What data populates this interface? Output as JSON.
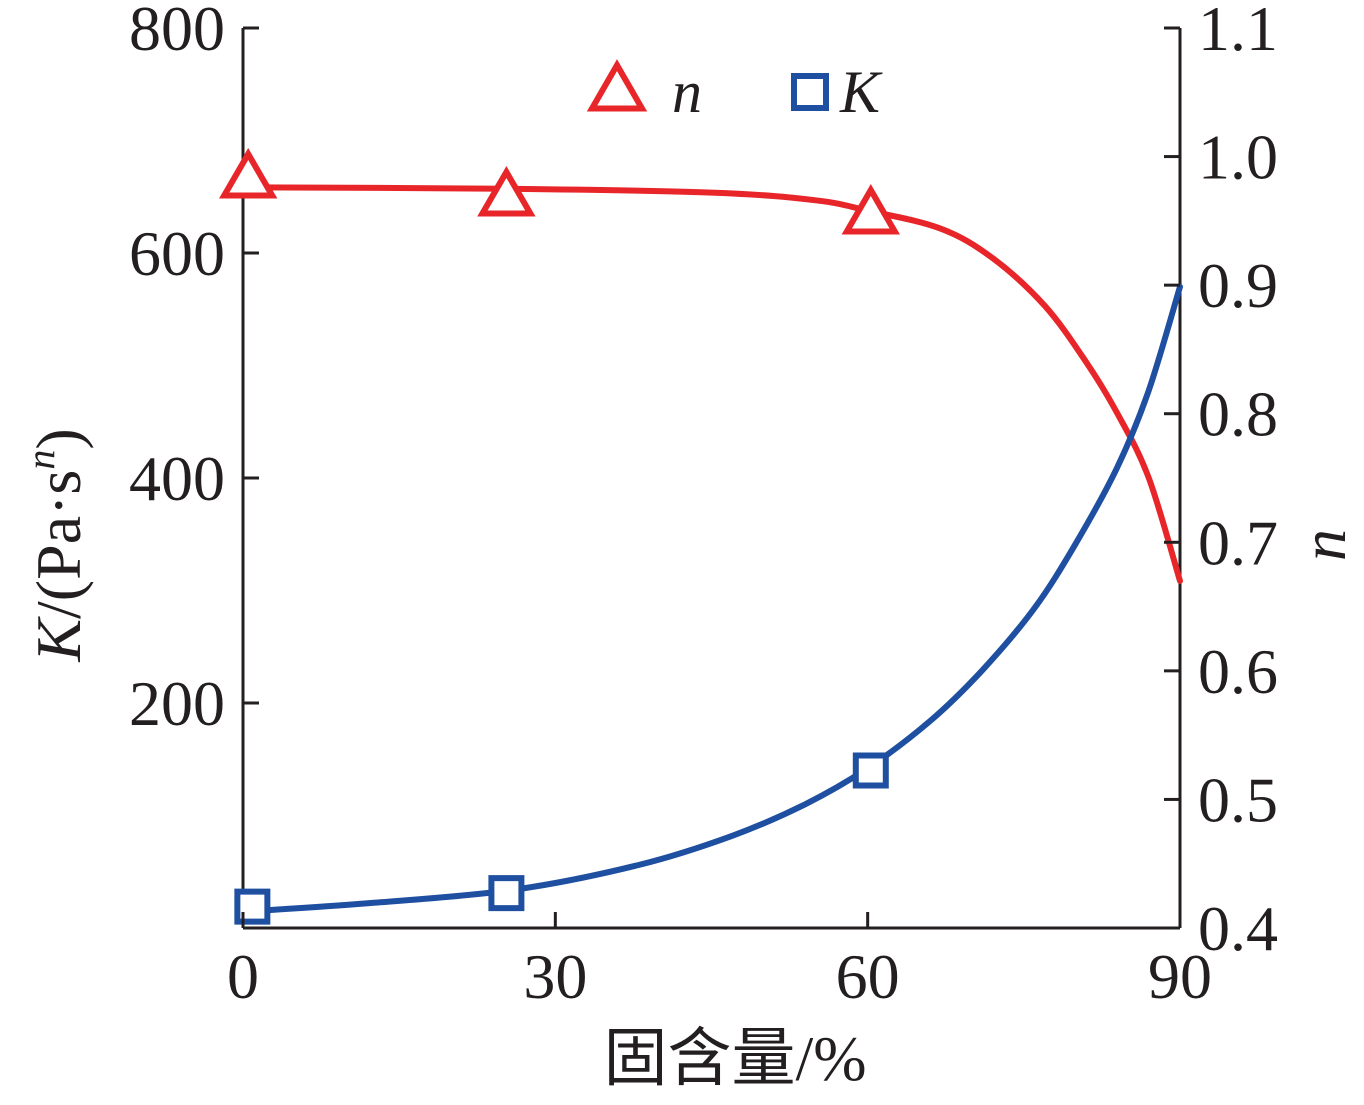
{
  "chart_data": {
    "type": "line",
    "x_axis": {
      "label": "固含量/%",
      "ticks": [
        0,
        30,
        60,
        90
      ],
      "range": [
        0,
        90
      ]
    },
    "y_left_axis": {
      "label_prefix": "K",
      "label_unit": "/(Pa·s",
      "label_sup": "n",
      "label_suffix": ")",
      "ticks": [
        200,
        400,
        600,
        800
      ],
      "range": [
        0,
        800
      ]
    },
    "y_right_axis": {
      "label": "n",
      "ticks": [
        "0.4",
        "0.5",
        "0.6",
        "0.7",
        "0.8",
        "0.9",
        "1.0",
        "1.1"
      ],
      "range": [
        0.4,
        1.1
      ]
    },
    "legend": {
      "placement": "top-center",
      "entries": [
        {
          "label": "n",
          "marker": "triangle",
          "color": "#e8262a"
        },
        {
          "label": "K",
          "marker": "square",
          "color": "#1f4fa0"
        }
      ]
    },
    "series": [
      {
        "name": "n",
        "axis": "right",
        "color": "#e8262a",
        "marker": "triangle",
        "points": [
          {
            "x": 0.5,
            "y": 0.982
          },
          {
            "x": 25.3,
            "y": 0.968
          },
          {
            "x": 60.3,
            "y": 0.954
          }
        ],
        "fit_curve": [
          {
            "x": 0.5,
            "y": 0.976
          },
          {
            "x": 25,
            "y": 0.975
          },
          {
            "x": 45,
            "y": 0.972
          },
          {
            "x": 55,
            "y": 0.966
          },
          {
            "x": 60,
            "y": 0.958
          },
          {
            "x": 67,
            "y": 0.944
          },
          {
            "x": 72,
            "y": 0.921
          },
          {
            "x": 77,
            "y": 0.884
          },
          {
            "x": 81,
            "y": 0.84
          },
          {
            "x": 84,
            "y": 0.8
          },
          {
            "x": 87,
            "y": 0.75
          },
          {
            "x": 90,
            "y": 0.67
          }
        ]
      },
      {
        "name": "K",
        "axis": "left",
        "color": "#1f4fa0",
        "marker": "square",
        "points": [
          {
            "x": 0.9,
            "y": 19
          },
          {
            "x": 25.3,
            "y": 31
          },
          {
            "x": 60.3,
            "y": 140
          }
        ],
        "fit_curve": [
          {
            "x": 0.9,
            "y": 15
          },
          {
            "x": 12,
            "y": 22
          },
          {
            "x": 26,
            "y": 34
          },
          {
            "x": 38,
            "y": 56
          },
          {
            "x": 47,
            "y": 82
          },
          {
            "x": 54,
            "y": 110
          },
          {
            "x": 60,
            "y": 142
          },
          {
            "x": 66,
            "y": 184
          },
          {
            "x": 71,
            "y": 229
          },
          {
            "x": 76,
            "y": 284
          },
          {
            "x": 80,
            "y": 342
          },
          {
            "x": 84,
            "y": 410
          },
          {
            "x": 87,
            "y": 478
          },
          {
            "x": 90,
            "y": 570
          }
        ]
      }
    ]
  }
}
